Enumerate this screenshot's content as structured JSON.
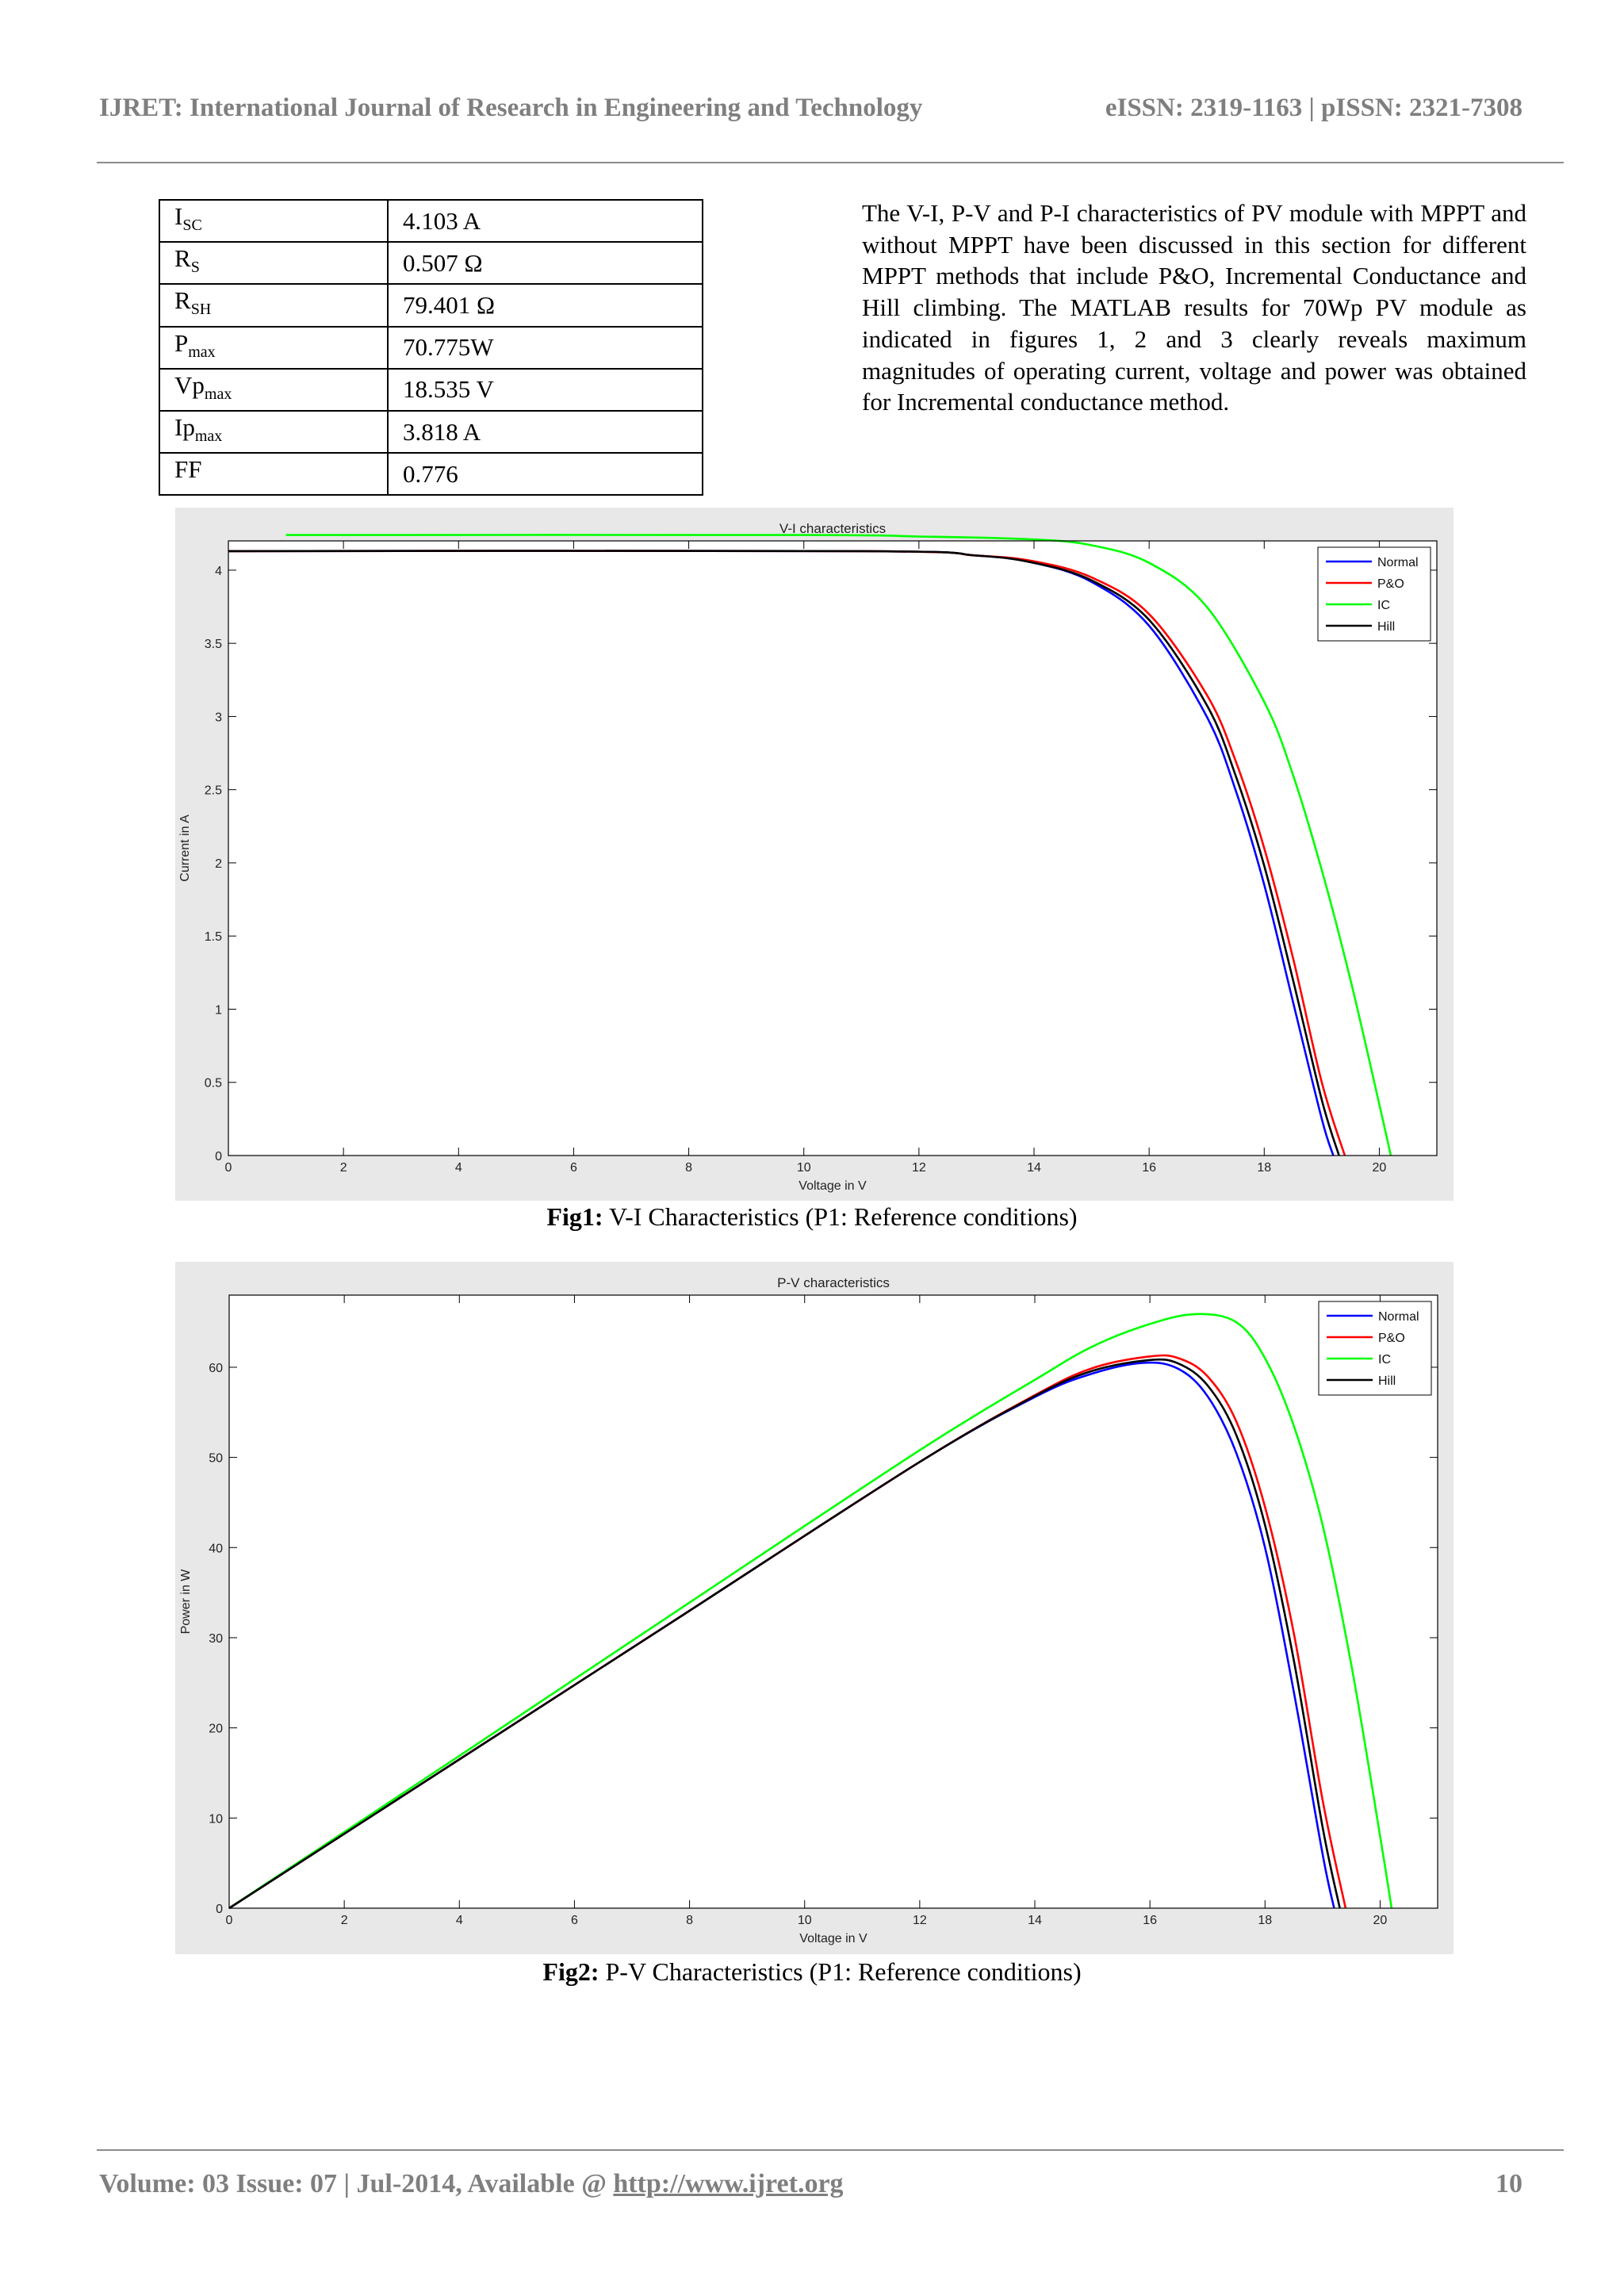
{
  "header": {
    "journal": "IJRET: International Journal of Research in Engineering and Technology",
    "issn": "eISSN: 2319-1163 | pISSN: 2321-7308"
  },
  "param_table": {
    "rows": [
      {
        "sym": "I",
        "sub": "SC",
        "value": "4.103 A"
      },
      {
        "sym": "R",
        "sub": "S",
        "value": "0.507 Ω"
      },
      {
        "sym": "R",
        "sub": "SH",
        "value": "79.401 Ω"
      },
      {
        "sym": "P",
        "sub": "max",
        "value": "70.775W"
      },
      {
        "sym": "Vp",
        "sub": "max",
        "value": "18.535 V"
      },
      {
        "sym": "Ip",
        "sub": "max",
        "value": "3.818 A"
      },
      {
        "sym": "FF",
        "sub": "",
        "value": "0.776"
      }
    ]
  },
  "body_text": "The V-I, P-V and P-I characteristics of PV module with MPPT and without MPPT have been discussed in this section for different MPPT methods that include P&O, Incremental Conductance and Hill climbing. The MATLAB results for 70Wp PV module as indicated in figures 1, 2 and 3 clearly reveals maximum magnitudes of operating current, voltage and power was obtained for Incremental conductance method.",
  "figures": [
    {
      "caption_label": "Fig1:",
      "caption_text": " V-I Characteristics (P1: Reference conditions)"
    },
    {
      "caption_label": "Fig2:",
      "caption_text": " P-V Characteristics (P1: Reference conditions)"
    }
  ],
  "chart_data": [
    {
      "type": "line",
      "title": "V-I characteristics",
      "xlabel": "Voltage in V",
      "ylabel": "Current in A",
      "xlim": [
        0,
        21
      ],
      "ylim": [
        0,
        4.2
      ],
      "xticks": [
        0,
        2,
        4,
        6,
        8,
        10,
        12,
        14,
        16,
        18,
        20
      ],
      "yticks": [
        0,
        0.5,
        1,
        1.5,
        2,
        2.5,
        3,
        3.5,
        4
      ],
      "grid": false,
      "legend_position": "top-right",
      "series": [
        {
          "name": "Normal",
          "color": "#0000ff",
          "x": [
            0,
            11,
            13,
            14,
            15,
            16,
            17,
            17.5,
            18,
            18.5,
            19,
            19.2
          ],
          "y": [
            4.13,
            4.13,
            4.1,
            4.05,
            3.92,
            3.62,
            3.0,
            2.5,
            1.85,
            1.05,
            0.25,
            0
          ]
        },
        {
          "name": "P&O",
          "color": "#ff0000",
          "x": [
            0,
            11,
            13,
            14,
            15,
            16,
            17,
            17.5,
            18,
            18.5,
            19,
            19.4
          ],
          "y": [
            4.13,
            4.13,
            4.1,
            4.06,
            3.95,
            3.7,
            3.15,
            2.7,
            2.1,
            1.35,
            0.5,
            0
          ]
        },
        {
          "name": "IC",
          "color": "#00ff00",
          "x": [
            1,
            10,
            12,
            14,
            15,
            16,
            17,
            18,
            18.5,
            19,
            19.5,
            20,
            20.2
          ],
          "y": [
            4.24,
            4.24,
            4.23,
            4.21,
            4.17,
            4.05,
            3.75,
            3.1,
            2.6,
            1.95,
            1.2,
            0.35,
            0
          ]
        },
        {
          "name": "Hill",
          "color": "#000000",
          "x": [
            0,
            11,
            13,
            14,
            15,
            16,
            17,
            17.5,
            18,
            18.5,
            19,
            19.3
          ],
          "y": [
            4.13,
            4.13,
            4.1,
            4.05,
            3.93,
            3.66,
            3.08,
            2.6,
            1.98,
            1.2,
            0.38,
            0
          ]
        }
      ]
    },
    {
      "type": "line",
      "title": "P-V characteristics",
      "xlabel": "Voltage in V",
      "ylabel": "Power in W",
      "xlim": [
        0,
        21
      ],
      "ylim": [
        0,
        68
      ],
      "xticks": [
        0,
        2,
        4,
        6,
        8,
        10,
        12,
        14,
        16,
        18,
        20
      ],
      "yticks": [
        0,
        10,
        20,
        30,
        40,
        50,
        60
      ],
      "grid": false,
      "legend_position": "top-right",
      "series": [
        {
          "name": "Normal",
          "color": "#0000ff",
          "x": [
            0,
            4,
            8,
            12,
            14,
            15,
            15.9,
            16.5,
            17,
            17.5,
            18,
            18.5,
            19,
            19.2
          ],
          "y": [
            0,
            16.5,
            33,
            49.5,
            56.7,
            59.3,
            60.5,
            59.8,
            56.8,
            50.5,
            40,
            24,
            6,
            0
          ]
        },
        {
          "name": "P&O",
          "color": "#ff0000",
          "x": [
            0,
            4,
            8,
            12,
            14,
            15,
            16,
            16.5,
            17,
            17.5,
            18,
            18.5,
            19,
            19.4
          ],
          "y": [
            0,
            16.5,
            33,
            49.5,
            56.9,
            59.9,
            61.2,
            61.0,
            59.0,
            54.0,
            44.5,
            30.5,
            12,
            0
          ]
        },
        {
          "name": "IC",
          "color": "#00ff00",
          "x": [
            0,
            4,
            8,
            12,
            14,
            15,
            16,
            16.8,
            17.5,
            18,
            18.5,
            19,
            19.5,
            20,
            20.2
          ],
          "y": [
            0,
            16.9,
            33.9,
            50.8,
            58.6,
            62.3,
            64.8,
            65.9,
            65.0,
            61.0,
            53.5,
            42.5,
            27,
            8,
            0
          ]
        },
        {
          "name": "Hill",
          "color": "#000000",
          "x": [
            0,
            4,
            8,
            12,
            14,
            15,
            16,
            16.5,
            17,
            17.5,
            18,
            18.5,
            19,
            19.3
          ],
          "y": [
            0,
            16.5,
            33,
            49.5,
            56.8,
            59.6,
            60.8,
            60.4,
            58.0,
            52.5,
            42.5,
            27.5,
            9,
            0
          ]
        }
      ]
    }
  ],
  "footer": {
    "volume": "Volume: 03 Issue: 07 | Jul-2014, Available @ ",
    "url": "http://www.ijret.org",
    "page": "10"
  }
}
